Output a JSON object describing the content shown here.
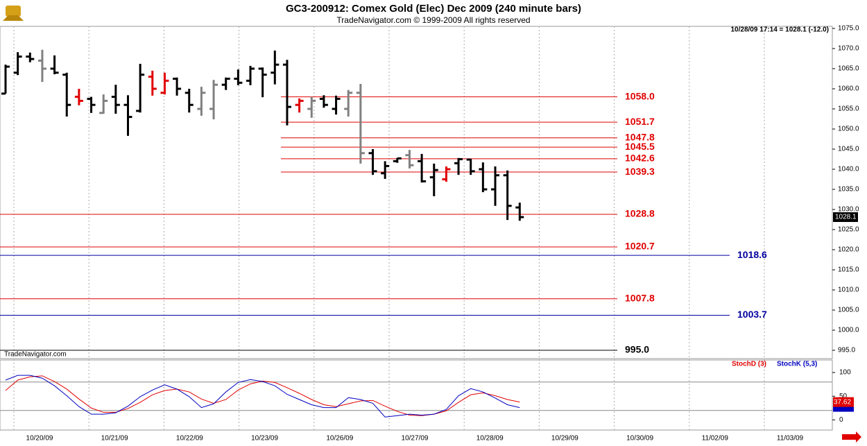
{
  "chart_data": [
    {
      "type": "ohlc",
      "title": "GC3-200912:  Comex Gold (Elec) Dec 2009  (240 minute bars)",
      "subtitle": "TradeNavigator.com © 1999-2009 All rights reserved",
      "watermark": "TradeNavigator.com",
      "last_quote": "10/28/09 17:14 = 1028.1 (-12.0)",
      "x_labels": [
        "10/20/09",
        "10/21/09",
        "10/22/09",
        "10/23/09",
        "10/26/09",
        "10/27/09",
        "10/28/09",
        "10/29/09",
        "10/30/09",
        "11/02/09",
        "11/03/09"
      ],
      "open": [
        1058.8,
        1064,
        1068,
        1067,
        1065,
        1063.5,
        1058,
        1057.5,
        1054,
        1058,
        1056,
        1054.5,
        1063,
        1059,
        1062.5,
        1059,
        1055,
        1055,
        1061,
        1062.5,
        1062,
        1065,
        1064,
        1066,
        1056,
        1055,
        1057.5,
        1055,
        1055,
        1059,
        1044,
        1039,
        1042,
        1043.5,
        1042,
        1038,
        1037.5,
        1041.5,
        1042.4,
        1040,
        1035,
        1038.5,
        1030.5
      ],
      "high": [
        1066,
        1069.1,
        1069,
        1069.7,
        1068.3,
        1064,
        1060,
        1058,
        1058.6,
        1061,
        1058.4,
        1066.2,
        1064.5,
        1064,
        1062.8,
        1060,
        1060.5,
        1062.2,
        1062.8,
        1064.8,
        1065.7,
        1065.3,
        1069.5,
        1067.2,
        1057.6,
        1058,
        1058.4,
        1058.3,
        1059.7,
        1061.2,
        1045,
        1042,
        1042.8,
        1044.8,
        1043.8,
        1041.4,
        1040.7,
        1042.8,
        1042.6,
        1041.7,
        1040.7,
        1039.7,
        1031.7
      ],
      "low": [
        1058.8,
        1063.4,
        1066.6,
        1061.7,
        1063.6,
        1053.1,
        1055.9,
        1054,
        1053.8,
        1053.8,
        1048.3,
        1054.1,
        1058.3,
        1058.6,
        1058.3,
        1054.1,
        1053.3,
        1052.4,
        1059.7,
        1060.9,
        1060.9,
        1057.9,
        1061.1,
        1050.9,
        1054.1,
        1052.8,
        1055.3,
        1053.6,
        1053.1,
        1041.4,
        1038.6,
        1037.6,
        1041.6,
        1040.2,
        1036.7,
        1033.3,
        1036.9,
        1038.6,
        1038.6,
        1034.3,
        1030.9,
        1027.4,
        1027.2
      ],
      "close": [
        1065.5,
        1068,
        1067.4,
        1065,
        1064,
        1056,
        1057,
        1056,
        1057,
        1056,
        1053,
        1063.5,
        1060,
        1062,
        1060,
        1056,
        1059,
        1061,
        1062.5,
        1061.5,
        1065,
        1063.5,
        1066,
        1055.5,
        1057,
        1057,
        1056,
        1057.5,
        1059,
        1044,
        1039.5,
        1040.8,
        1042.7,
        1041,
        1037,
        1039.8,
        1040,
        1042.5,
        1039.5,
        1035,
        1038.5,
        1030.9,
        1028.1
      ],
      "bar_colors": [
        "#000000",
        "#000000",
        "#000000",
        "#808080",
        "#000000",
        "#000000",
        "#e00000",
        "#000000",
        "#808080",
        "#000000",
        "#000000",
        "#000000",
        "#e00000",
        "#e00000",
        "#000000",
        "#000000",
        "#808080",
        "#808080",
        "#000000",
        "#000000",
        "#000000",
        "#000000",
        "#000000",
        "#000000",
        "#e00000",
        "#808080",
        "#000000",
        "#000000",
        "#808080",
        "#808080",
        "#000000",
        "#000000",
        "#000000",
        "#808080",
        "#000000",
        "#000000",
        "#e00000",
        "#000000",
        "#000000",
        "#000000",
        "#000000",
        "#000000",
        "#000000"
      ],
      "ylim": [
        993,
        1076
      ],
      "yticks": [
        {
          "value": 995,
          "label": "995.0"
        },
        {
          "value": 1000,
          "label": "1000.0"
        },
        {
          "value": 1005,
          "label": "1005.0"
        },
        {
          "value": 1010,
          "label": "1010.0"
        },
        {
          "value": 1015,
          "label": "1015.0"
        },
        {
          "value": 1020,
          "label": "1020.0"
        },
        {
          "value": 1025,
          "label": "1025.0"
        },
        {
          "value": 1030,
          "label": "1030.0"
        },
        {
          "value": 1035,
          "label": "1035.0"
        },
        {
          "value": 1040,
          "label": "1040.0"
        },
        {
          "value": 1045,
          "label": "1045.0"
        },
        {
          "value": 1050,
          "label": "1050.0"
        },
        {
          "value": 1055,
          "label": "1055.0"
        },
        {
          "value": 1060,
          "label": "1060.0"
        },
        {
          "value": 1065,
          "label": "1065.0"
        },
        {
          "value": 1070,
          "label": "1070.0"
        },
        {
          "value": 1075,
          "label": "1075.0"
        }
      ],
      "levels": [
        {
          "value": 1058,
          "label": "1058.0",
          "color": "#e00000"
        },
        {
          "value": 1051.7,
          "label": "1051.7",
          "color": "#e00000"
        },
        {
          "value": 1047.8,
          "label": "1047.8",
          "color": "#e00000"
        },
        {
          "value": 1045.5,
          "label": "1045.5",
          "color": "#e00000"
        },
        {
          "value": 1042.6,
          "label": "1042.6",
          "color": "#e00000"
        },
        {
          "value": 1039.3,
          "label": "1039.3",
          "color": "#e00000"
        },
        {
          "value": 1028.8,
          "label": "1028.8",
          "color": "#e00000"
        },
        {
          "value": 1020.7,
          "label": "1020.7",
          "color": "#e00000"
        },
        {
          "value": 1018.6,
          "label": "1018.6",
          "color": "#0000a0"
        },
        {
          "value": 1007.8,
          "label": "1007.8",
          "color": "#e00000"
        },
        {
          "value": 1003.7,
          "label": "1003.7",
          "color": "#0000a0"
        },
        {
          "value": 995,
          "label": "995.0",
          "color": "#000000"
        }
      ]
    },
    {
      "type": "line",
      "series": [
        {
          "name": "StochD (3)",
          "color": "#e00000",
          "values": [
            62,
            84,
            91,
            93,
            81,
            65,
            44,
            25,
            16,
            16,
            24,
            37,
            53,
            62,
            65,
            59,
            44,
            35,
            43,
            63,
            76,
            82,
            79,
            68,
            56,
            43,
            32,
            28,
            34,
            40,
            41,
            29,
            18,
            10,
            9,
            12,
            19,
            37,
            53,
            57,
            51,
            43,
            37.62
          ]
        },
        {
          "name": "StochK (5,3)",
          "color": "#0000c0",
          "values": [
            84,
            94,
            94,
            88,
            72,
            51,
            28,
            12,
            12,
            15,
            29,
            49,
            63,
            74,
            65,
            49,
            26,
            34,
            59,
            79,
            85,
            81,
            72,
            54,
            43,
            32,
            26,
            26,
            47,
            43,
            35,
            6,
            9,
            12,
            10,
            12,
            22,
            51,
            66,
            59,
            46,
            32,
            26
          ]
        }
      ],
      "ylim": [
        -20,
        125
      ],
      "yticks": [
        0,
        50,
        100
      ],
      "reference_lines": [
        80,
        20
      ]
    }
  ]
}
